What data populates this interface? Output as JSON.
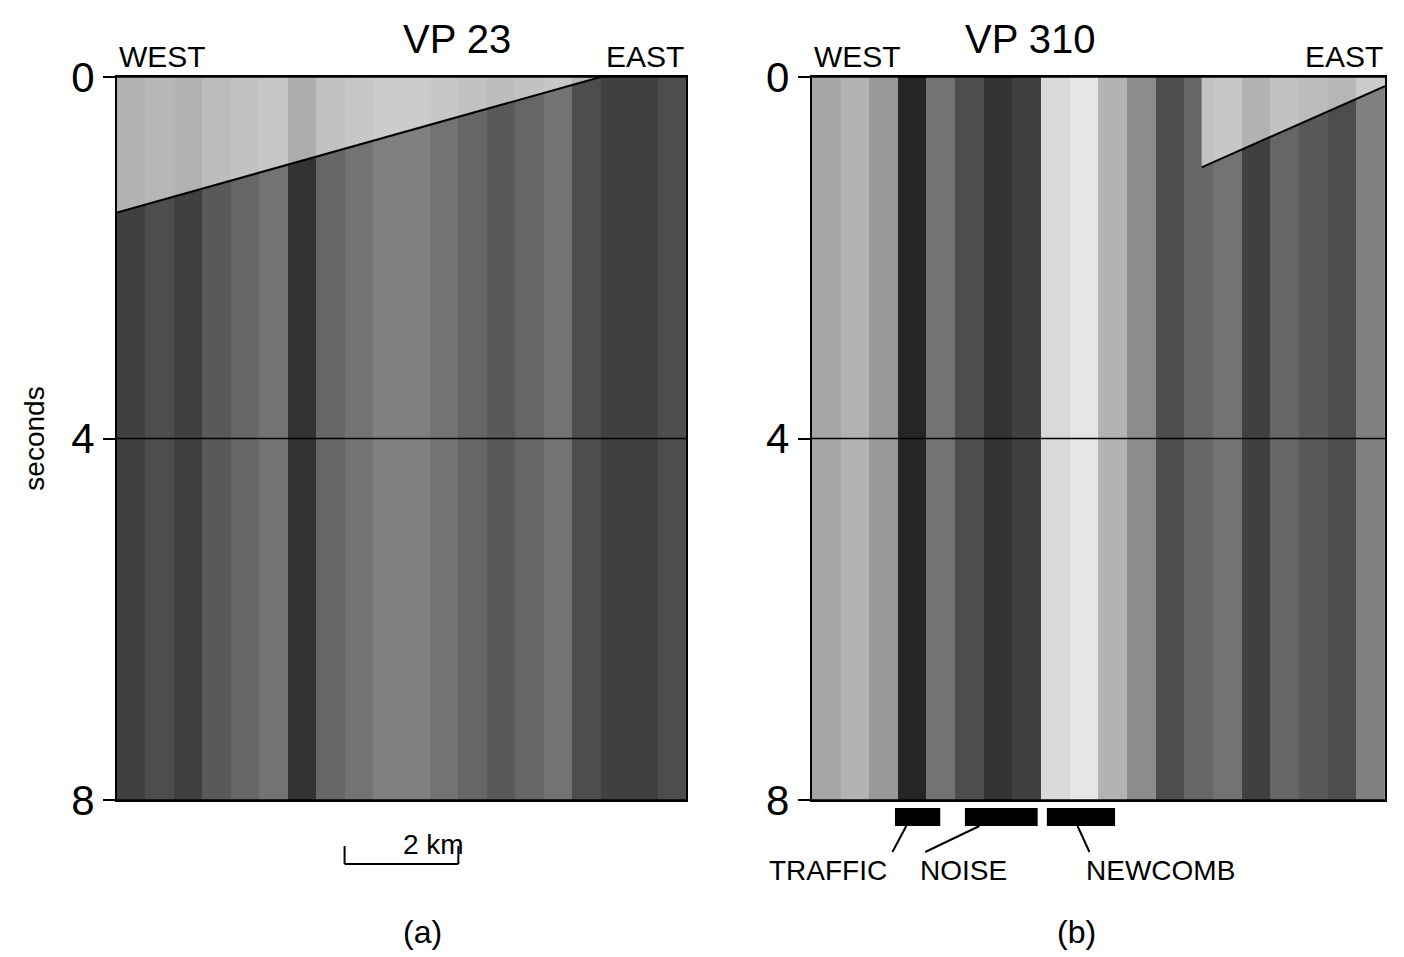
{
  "chart_data": [
    {
      "type": "heatmap",
      "title": "VP 23",
      "panel": "(a)",
      "x_labels": [
        "WEST",
        "EAST"
      ],
      "ylabel": "seconds",
      "xlim": [
        0,
        10
      ],
      "ylim": [
        8,
        0
      ],
      "yticks": [
        0,
        4,
        8
      ],
      "tick_labels": "y",
      "grid": true,
      "density_range": [
        0,
        1
      ],
      "column_edges": [
        0,
        0.5,
        1,
        1.5,
        2,
        2.5,
        3,
        3.5,
        4,
        4.5,
        5,
        5.5,
        6,
        6.5,
        7,
        7.5,
        8,
        8.5,
        9,
        9.5,
        10
      ],
      "trace_density": [
        0.75,
        0.7,
        0.75,
        0.65,
        0.6,
        0.55,
        0.8,
        0.6,
        0.55,
        0.5,
        0.5,
        0.55,
        0.6,
        0.65,
        0.6,
        0.55,
        0.7,
        0.75,
        0.75,
        0.7
      ],
      "first_arrival": {
        "x": [
          0,
          8.5
        ],
        "y": [
          1.5,
          0
        ]
      },
      "scale_bar": {
        "label": "2 km",
        "x_start": 4,
        "length": 2
      }
    },
    {
      "type": "heatmap",
      "title": "VP 310",
      "panel": "(b)",
      "x_labels": [
        "WEST",
        "EAST"
      ],
      "xlim": [
        0,
        10
      ],
      "ylim": [
        8,
        0
      ],
      "yticks": [
        0,
        4,
        8
      ],
      "tick_labels": "y",
      "grid": true,
      "density_range": [
        0,
        1
      ],
      "column_edges": [
        0,
        0.5,
        1,
        1.5,
        2,
        2.5,
        3,
        3.5,
        4,
        4.5,
        5,
        5.5,
        6,
        6.5,
        7,
        7.5,
        8,
        8.5,
        9,
        9.5,
        10
      ],
      "trace_density": [
        0.35,
        0.3,
        0.4,
        0.85,
        0.55,
        0.7,
        0.8,
        0.75,
        0.15,
        0.1,
        0.3,
        0.45,
        0.7,
        0.6,
        0.55,
        0.75,
        0.6,
        0.65,
        0.7,
        0.5
      ],
      "first_arrival": {
        "x": [
          6.8,
          10
        ],
        "y": [
          1.0,
          0.1
        ]
      },
      "annotations": [
        {
          "text": [
            "TRAFFIC",
            "NOISE"
          ],
          "points_to": [
            [
              1.45,
              2.24
            ],
            [
              2.67,
              3.94
            ]
          ]
        },
        {
          "text": [
            "NEWCOMB"
          ],
          "points_to": [
            [
              4.1,
              5.29
            ]
          ]
        }
      ]
    }
  ]
}
